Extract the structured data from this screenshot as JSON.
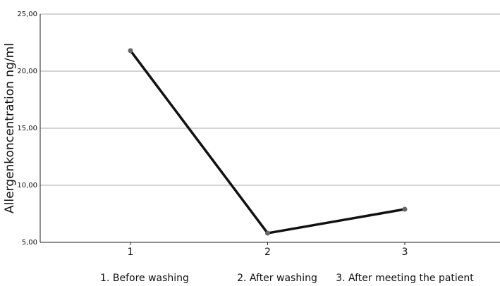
{
  "chart_data": {
    "type": "line",
    "y_label": "Allergenkoncentration ng/ml",
    "categories": [
      "1",
      "2",
      "3"
    ],
    "annotations": [
      "1. Before washing",
      "2. After washing",
      "3. After meeting the patient"
    ],
    "values": [
      21.8,
      5.8,
      7.9
    ],
    "color": "#111111",
    "ylim": [
      5,
      25
    ],
    "yticks": [
      {
        "value": 5,
        "label": "5,00"
      },
      {
        "value": 10,
        "label": "10,00"
      },
      {
        "value": 15,
        "label": "15,00"
      },
      {
        "value": 20,
        "label": "20,00"
      },
      {
        "value": 25,
        "label": "25,00"
      }
    ],
    "grid": true
  }
}
